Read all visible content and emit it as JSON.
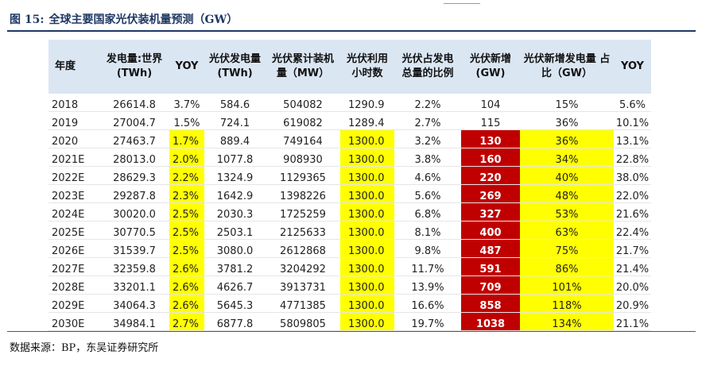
{
  "figure": {
    "number": "图 15:",
    "title": "全球主要国家光伏装机量预测（GW）"
  },
  "table": {
    "headers": [
      "年度",
      "发电量:世界 (TWh)",
      "YOY",
      "光伏发电量 (TWh)",
      "光伏累计装机 量（MW）",
      "光伏利用 小时数",
      "光伏占发电 总量的比例",
      "光伏新增 (GW)",
      "光伏新增发电量 占比（GW）",
      "YOY"
    ],
    "rows": [
      [
        "2018",
        "26614.8",
        "3.7%",
        "584.6",
        "504082",
        "1290.9",
        "2.2%",
        "104",
        "15%",
        "5.6%"
      ],
      [
        "2019",
        "27004.7",
        "1.5%",
        "724.1",
        "619082",
        "1289.4",
        "2.7%",
        "115",
        "36%",
        "10.1%"
      ],
      [
        "2020",
        "27463.7",
        "1.7%",
        "889.4",
        "749164",
        "1300.0",
        "3.2%",
        "130",
        "36%",
        "13.1%"
      ],
      [
        "2021E",
        "28013.0",
        "2.0%",
        "1077.8",
        "908930",
        "1300.0",
        "3.8%",
        "160",
        "34%",
        "22.8%"
      ],
      [
        "2022E",
        "28629.3",
        "2.2%",
        "1324.9",
        "1129365",
        "1300.0",
        "4.6%",
        "220",
        "40%",
        "38.0%"
      ],
      [
        "2023E",
        "29287.8",
        "2.3%",
        "1642.9",
        "1398226",
        "1300.0",
        "5.6%",
        "269",
        "48%",
        "22.0%"
      ],
      [
        "2024E",
        "30020.0",
        "2.5%",
        "2030.3",
        "1725259",
        "1300.0",
        "6.8%",
        "327",
        "53%",
        "21.6%"
      ],
      [
        "2025E",
        "30770.5",
        "2.5%",
        "2503.1",
        "2125633",
        "1300.0",
        "8.1%",
        "400",
        "63%",
        "22.4%"
      ],
      [
        "2026E",
        "31539.7",
        "2.5%",
        "3080.0",
        "2612868",
        "1300.0",
        "9.8%",
        "487",
        "75%",
        "21.7%"
      ],
      [
        "2027E",
        "32359.8",
        "2.6%",
        "3781.2",
        "3204292",
        "1300.0",
        "11.7%",
        "591",
        "86%",
        "21.4%"
      ],
      [
        "2028E",
        "33201.1",
        "2.6%",
        "4626.7",
        "3913731",
        "1300.0",
        "13.9%",
        "709",
        "101%",
        "20.0%"
      ],
      [
        "2029E",
        "34064.3",
        "2.6%",
        "5645.3",
        "4771385",
        "1300.0",
        "16.6%",
        "858",
        "118%",
        "20.9%"
      ],
      [
        "2030E",
        "34984.1",
        "2.7%",
        "6877.8",
        "5809805",
        "1300.0",
        "19.7%",
        "1038",
        "134%",
        "21.1%"
      ]
    ]
  },
  "source": "数据来源：BP，东吴证券研究所",
  "colors": {
    "header_bg": "#dbe6f3",
    "highlight_yellow": "#ffff00",
    "highlight_red": "#c00000",
    "title_color": "#1f3864"
  }
}
